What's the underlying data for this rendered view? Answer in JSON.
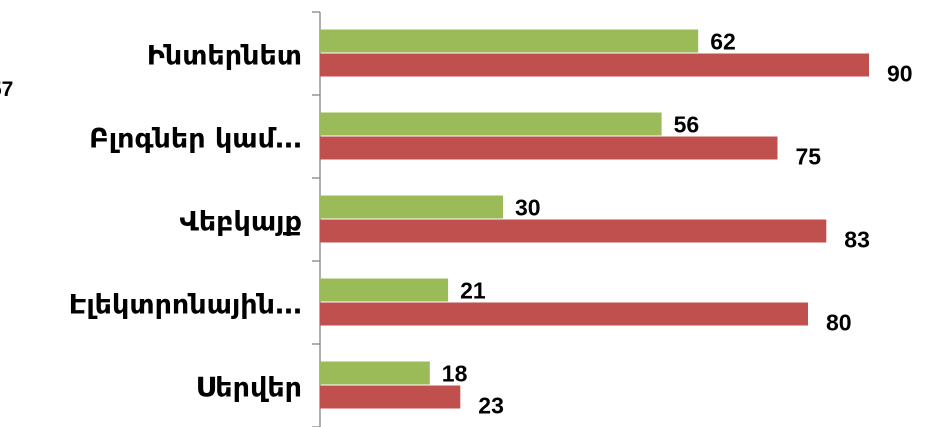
{
  "chart_data": {
    "type": "bar",
    "orientation": "horizontal",
    "categories": [
      "Ինտերնետ",
      "Բլոգներ կամ…",
      "Վեբկայք",
      "Էլեկտրոնային…",
      "Սերվեր"
    ],
    "series": [
      {
        "values": [
          62,
          56,
          30,
          21,
          18
        ],
        "color": "#9BBB59"
      },
      {
        "values": [
          90,
          75,
          83,
          80,
          23
        ],
        "color": "#C0504D"
      }
    ],
    "xlim": [
      0,
      100
    ],
    "grid": false,
    "legend": "none",
    "stray_label": "57"
  }
}
